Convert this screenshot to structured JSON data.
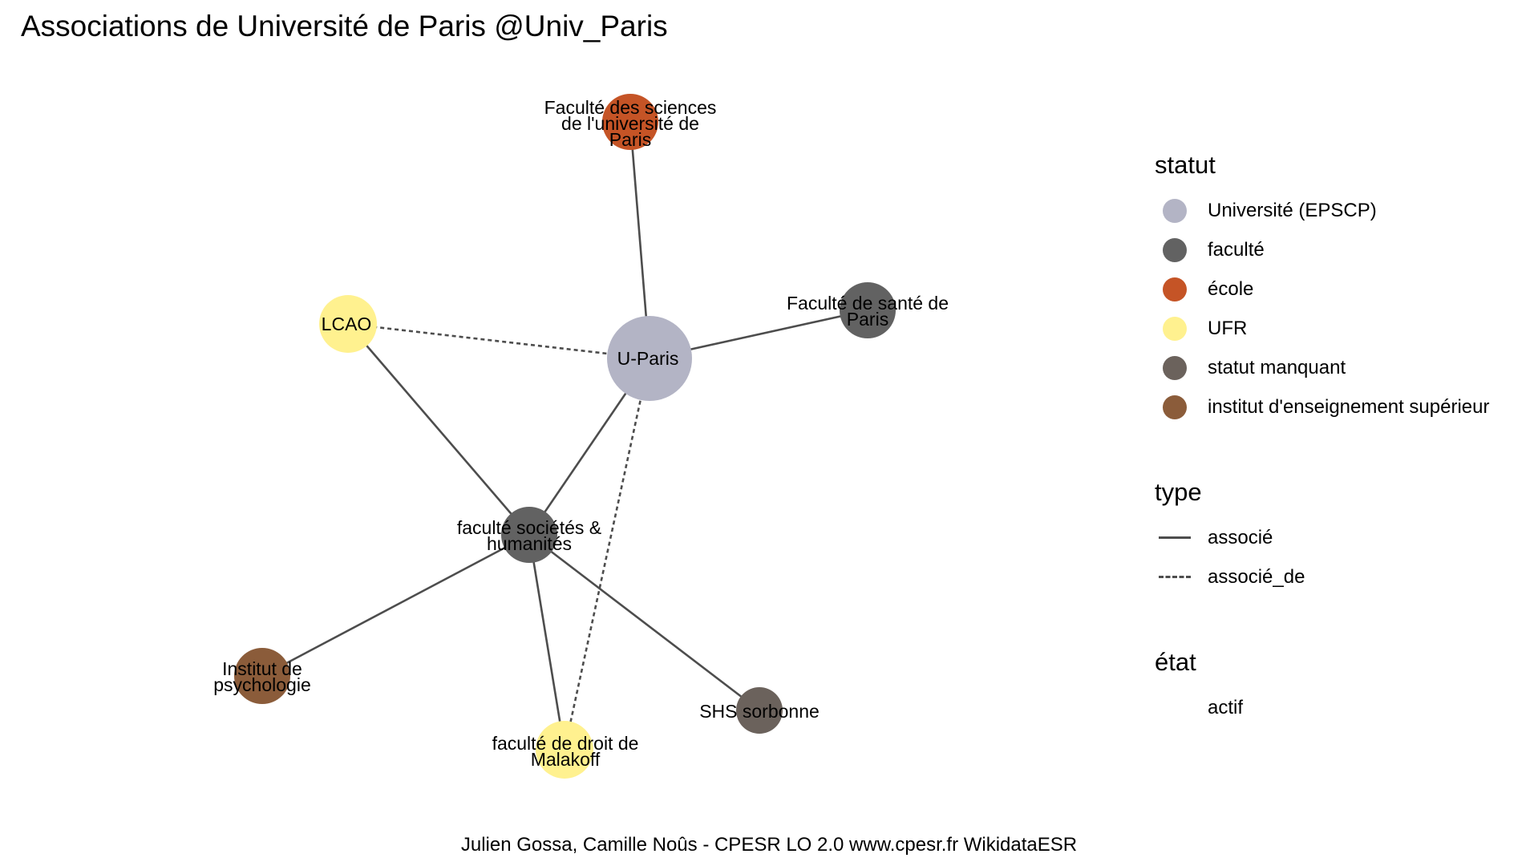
{
  "title": "Associations de Université de Paris @Univ_Paris",
  "caption": "Julien Gossa, Camille Noûs - CPESR LO 2.0 www.cpesr.fr WikidataESR",
  "nodes": [
    {
      "id": "uparis",
      "lines": [
        "U-Paris"
      ],
      "statut": "universite",
      "main": true
    },
    {
      "id": "sciences",
      "lines": [
        "Faculté des sciences",
        "de l'université de",
        "Paris"
      ],
      "statut": "ecole"
    },
    {
      "id": "sante",
      "lines": [
        "Faculté de santé de",
        "Paris"
      ],
      "statut": "faculte"
    },
    {
      "id": "lcao",
      "lines": [
        "LCAO"
      ],
      "statut": "ufr"
    },
    {
      "id": "societes",
      "lines": [
        "faculté sociétés &",
        "humanités"
      ],
      "statut": "faculte"
    },
    {
      "id": "psycho",
      "lines": [
        "Institut de",
        "psychologie"
      ],
      "statut": "institut"
    },
    {
      "id": "droit",
      "lines": [
        "faculté de droit de",
        "Malakoff"
      ],
      "statut": "ufr"
    },
    {
      "id": "shs",
      "lines": [
        "SHS sorbonne"
      ],
      "statut": "manquant"
    }
  ],
  "edges": [
    {
      "from": "uparis",
      "to": "sciences",
      "type": "associe"
    },
    {
      "from": "uparis",
      "to": "sante",
      "type": "associe"
    },
    {
      "from": "uparis",
      "to": "lcao",
      "type": "associe_de"
    },
    {
      "from": "uparis",
      "to": "societes",
      "type": "associe"
    },
    {
      "from": "uparis",
      "to": "droit",
      "type": "associe_de"
    },
    {
      "from": "lcao",
      "to": "societes",
      "type": "associe"
    },
    {
      "from": "societes",
      "to": "psycho",
      "type": "associe"
    },
    {
      "from": "societes",
      "to": "droit",
      "type": "associe"
    },
    {
      "from": "societes",
      "to": "shs",
      "type": "associe"
    }
  ],
  "legend": {
    "statut": {
      "title": "statut",
      "items": [
        {
          "key": "universite",
          "label": "Université (EPSCP)",
          "color": "#B3B4C5"
        },
        {
          "key": "faculte",
          "label": "faculté",
          "color": "#626262"
        },
        {
          "key": "ecole",
          "label": "école",
          "color": "#C55426"
        },
        {
          "key": "ufr",
          "label": "UFR",
          "color": "#FFF18F"
        },
        {
          "key": "manquant",
          "label": "statut manquant",
          "color": "#6B625C"
        },
        {
          "key": "institut",
          "label": "institut d'enseignement supérieur",
          "color": "#8B5C3A"
        }
      ]
    },
    "type": {
      "title": "type",
      "items": [
        {
          "key": "associe",
          "label": "associé",
          "style": "solid"
        },
        {
          "key": "associe_de",
          "label": "associé_de",
          "style": "dashed"
        }
      ]
    },
    "etat": {
      "title": "état",
      "items": [
        {
          "key": "actif",
          "label": "actif"
        }
      ]
    }
  },
  "colors": {
    "edge": "#4D4D4D"
  }
}
